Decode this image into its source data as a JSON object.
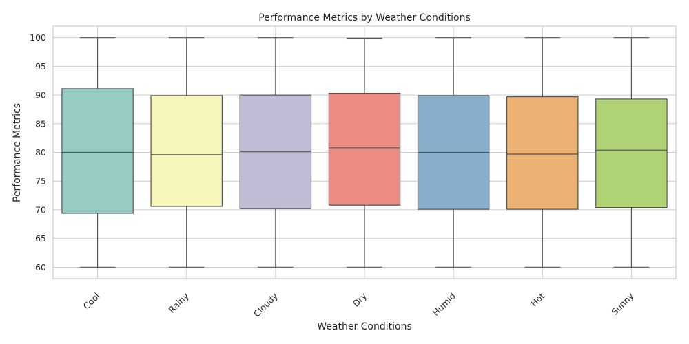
{
  "chart_data": {
    "type": "box",
    "title": "Performance Metrics by Weather Conditions",
    "xlabel": "Weather Conditions",
    "ylabel": "Performance Metrics",
    "ylim": [
      58,
      102
    ],
    "yticks": [
      60,
      65,
      70,
      75,
      80,
      85,
      90,
      95,
      100
    ],
    "grid": true,
    "categories": [
      "Cool",
      "Rainy",
      "Cloudy",
      "Dry",
      "Humid",
      "Hot",
      "Sunny"
    ],
    "colors": [
      "#96ccc3",
      "#f6f6bb",
      "#c0bcd6",
      "#ea8c82",
      "#87aecb",
      "#ecb273",
      "#aed274"
    ],
    "series": [
      {
        "category": "Cool",
        "min": 60,
        "q1": 69.4,
        "median": 80.0,
        "q3": 91.1,
        "max": 100
      },
      {
        "category": "Rainy",
        "min": 60,
        "q1": 70.6,
        "median": 79.6,
        "q3": 89.9,
        "max": 100
      },
      {
        "category": "Cloudy",
        "min": 60,
        "q1": 70.2,
        "median": 80.1,
        "q3": 90.0,
        "max": 100
      },
      {
        "category": "Dry",
        "min": 60,
        "q1": 70.8,
        "median": 80.8,
        "q3": 90.3,
        "max": 99.9
      },
      {
        "category": "Humid",
        "min": 60,
        "q1": 70.1,
        "median": 80.0,
        "q3": 89.9,
        "max": 100
      },
      {
        "category": "Hot",
        "min": 60,
        "q1": 70.1,
        "median": 79.7,
        "q3": 89.7,
        "max": 100
      },
      {
        "category": "Sunny",
        "min": 60,
        "q1": 70.4,
        "median": 80.4,
        "q3": 89.3,
        "max": 100
      }
    ]
  }
}
